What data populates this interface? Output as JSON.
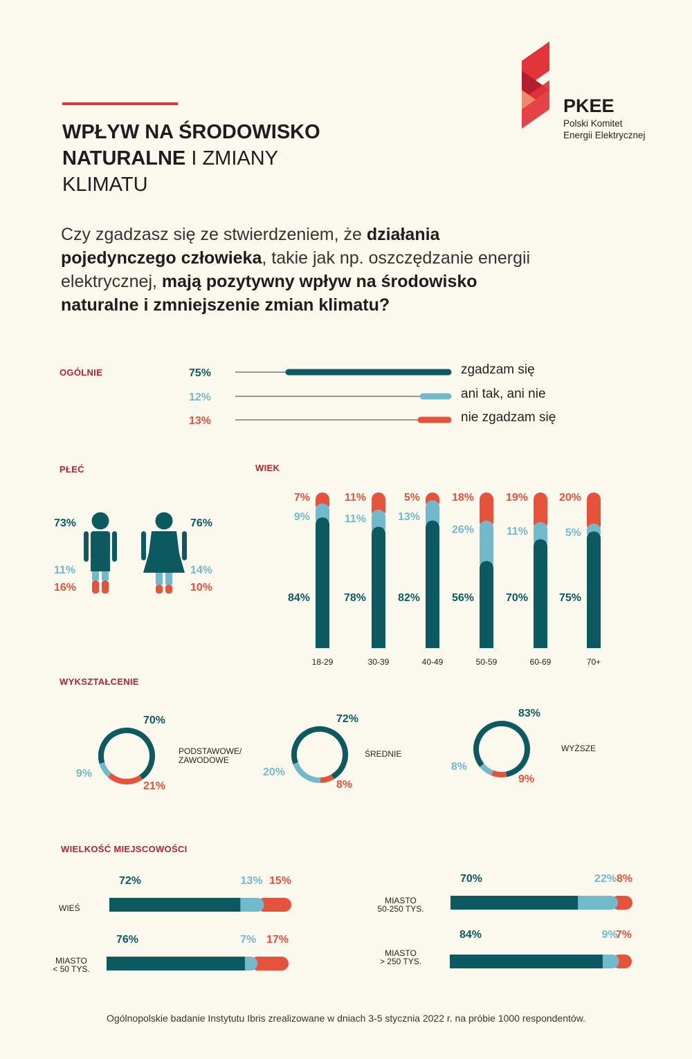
{
  "colors": {
    "agree": "#0c5a60",
    "neutral": "#73b9cc",
    "disagree": "#e6533d",
    "section": "#b3242f",
    "accent": "#e2343a"
  },
  "logo": {
    "name": "PKEE",
    "line1": "Polski Komitet",
    "line2": "Energii Elektrycznej",
    "icon": "pkee-logo-icon"
  },
  "title": {
    "line1": "WPŁYW NA ŚRODOWISKO",
    "line2_bold": "NATURALNE",
    "line2_thin": " I ZMIANY",
    "line3": "KLIMATU"
  },
  "question": {
    "p1": "Czy zgadzasz się ze stwierdzeniem, że ",
    "b1": "działania pojedynczego człowieka",
    "p2": ", takie jak np. oszczędzanie energii elektrycznej, ",
    "b2": "mają pozytywny wpływ na środowisko naturalne i zmniejszenie zmian klimatu?"
  },
  "sections": {
    "overall": "OGÓLNIE",
    "gender": "PŁEĆ",
    "age": "WIEK",
    "education": "WYKSZTAŁCENIE",
    "town": "WIELKOŚĆ MIEJSCOWOŚCI"
  },
  "footer": "Ogólnopolskie badanie Instytutu Ibris zrealizowane w dniach 3-5 stycznia 2022 r. na próbie 1000 respondentów.",
  "chart_data": [
    {
      "type": "bar",
      "id": "overall",
      "title": "OGÓLNIE",
      "categories": [
        "zgadzam się",
        "ani tak, ani nie",
        "nie zgadzam się"
      ],
      "values": [
        75,
        12,
        13
      ],
      "labels": [
        "75%",
        "12%",
        "13%"
      ]
    },
    {
      "type": "bar",
      "id": "gender",
      "title": "PŁEĆ",
      "categories": [
        "mężczyzna",
        "kobieta"
      ],
      "series": [
        {
          "name": "zgadzam się",
          "values": [
            73,
            76
          ],
          "labels": [
            "73%",
            "76%"
          ]
        },
        {
          "name": "ani tak, ani nie",
          "values": [
            11,
            14
          ],
          "labels": [
            "11%",
            "14%"
          ]
        },
        {
          "name": "nie zgadzam się",
          "values": [
            16,
            10
          ],
          "labels": [
            "16%",
            "10%"
          ]
        }
      ]
    },
    {
      "type": "bar",
      "id": "age",
      "title": "WIEK",
      "categories": [
        "18-29",
        "30-39",
        "40-49",
        "50-59",
        "60-69",
        "70+"
      ],
      "series": [
        {
          "name": "zgadzam się",
          "values": [
            84,
            78,
            82,
            56,
            70,
            75
          ],
          "labels": [
            "84%",
            "78%",
            "82%",
            "56%",
            "70%",
            "75%"
          ]
        },
        {
          "name": "ani tak, ani nie",
          "values": [
            9,
            11,
            13,
            26,
            11,
            5
          ],
          "labels": [
            "9%",
            "11%",
            "13%",
            "26%",
            "11%",
            "5%"
          ]
        },
        {
          "name": "nie zgadzam się",
          "values": [
            7,
            11,
            5,
            18,
            19,
            20
          ],
          "labels": [
            "7%",
            "11%",
            "5%",
            "18%",
            "19%",
            "20%"
          ]
        }
      ]
    },
    {
      "type": "pie",
      "id": "education",
      "title": "WYKSZTAŁCENIE",
      "categories": [
        "PODSTAWOWE/ ZAWODOWE",
        "ŚREDNIE",
        "WYŻSZE"
      ],
      "category_lines": [
        [
          "PODSTAWOWE/",
          "ZAWODOWE"
        ],
        [
          "ŚREDNIE"
        ],
        [
          "WYŻSZE"
        ]
      ],
      "series": [
        {
          "name": "zgadzam się",
          "values": [
            70,
            72,
            83
          ],
          "labels": [
            "70%",
            "72%",
            "83%"
          ]
        },
        {
          "name": "ani tak, ani nie",
          "values": [
            9,
            20,
            8
          ],
          "labels": [
            "9%",
            "20%",
            "8%"
          ]
        },
        {
          "name": "nie zgadzam się",
          "values": [
            21,
            8,
            9
          ],
          "labels": [
            "21%",
            "8%",
            "9%"
          ]
        }
      ]
    },
    {
      "type": "bar",
      "id": "town",
      "title": "WIELKOŚĆ MIEJSCOWOŚCI",
      "categories": [
        "WIEŚ",
        "MIASTO < 50 TYS.",
        "MIASTO 50-250 TYS.",
        "MIASTO > 250 TYS."
      ],
      "category_lines": [
        [
          "WIEŚ"
        ],
        [
          "MIASTO",
          "< 50 TYS."
        ],
        [
          "MIASTO",
          "50-250 TYS."
        ],
        [
          "MIASTO",
          "> 250 TYS."
        ]
      ],
      "series": [
        {
          "name": "zgadzam się",
          "values": [
            72,
            76,
            70,
            84
          ],
          "labels": [
            "72%",
            "76%",
            "70%",
            "84%"
          ]
        },
        {
          "name": "ani tak, ani nie",
          "values": [
            13,
            7,
            22,
            9
          ],
          "labels": [
            "13%",
            "7%",
            "22%",
            "9%"
          ]
        },
        {
          "name": "nie zgadzam się",
          "values": [
            15,
            17,
            8,
            7
          ],
          "labels": [
            "15%",
            "17%",
            "8%",
            "7%"
          ]
        }
      ]
    }
  ]
}
